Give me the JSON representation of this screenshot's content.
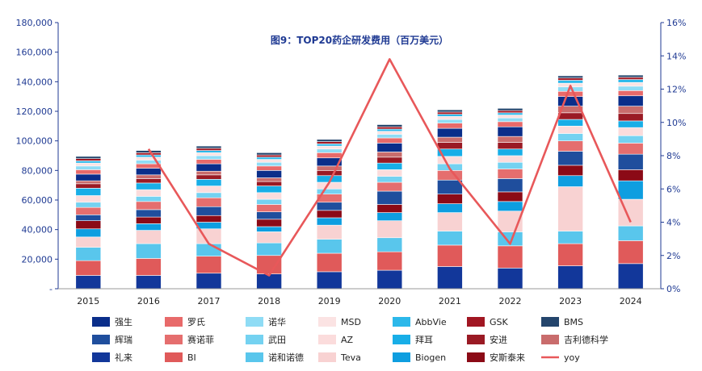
{
  "chart_data": {
    "type": "bar",
    "stacked": true,
    "title": "图9：TOP20药企研发费用（百万美元）",
    "categories": [
      "2015",
      "2016",
      "2017",
      "2018",
      "2019",
      "2020",
      "2021",
      "2022",
      "2023",
      "2024"
    ],
    "y_left": {
      "ylim": [
        0,
        180000
      ],
      "ticks": [
        0,
        20000,
        40000,
        60000,
        80000,
        100000,
        120000,
        140000,
        160000,
        180000
      ],
      "tick_labels": [
        "-",
        "20,000",
        "40,000",
        "60,000",
        "80,000",
        "100,000",
        "120,000",
        "140,000",
        "160,000",
        "180,000"
      ]
    },
    "y_right": {
      "ylim": [
        0,
        16
      ],
      "ticks": [
        0,
        2,
        4,
        6,
        8,
        10,
        12,
        14,
        16
      ],
      "tick_labels": [
        "0%",
        "2%",
        "4%",
        "6%",
        "8%",
        "10%",
        "12%",
        "14%",
        "16%"
      ]
    },
    "series": [
      {
        "name": "礼来",
        "color": "#12379a",
        "values": [
          9000,
          9000,
          10500,
          10000,
          11500,
          12500,
          15000,
          14000,
          15500,
          17000
        ]
      },
      {
        "name": "BI",
        "color": "#e05a5a",
        "values": [
          10000,
          11500,
          11500,
          12500,
          12500,
          12500,
          14500,
          15000,
          15000,
          15500
        ]
      },
      {
        "name": "诺和诺德",
        "color": "#59c6ec",
        "values": [
          9000,
          10000,
          8500,
          8500,
          9500,
          9500,
          9500,
          9500,
          8500,
          10000
        ]
      },
      {
        "name": "Teva",
        "color": "#f8d2d2",
        "values": [
          7000,
          9000,
          10000,
          7500,
          9500,
          11500,
          12500,
          14000,
          30000,
          18000
        ]
      },
      {
        "name": "Biogen",
        "color": "#0e9ee0",
        "values": [
          5500,
          4500,
          4500,
          3500,
          5000,
          5500,
          6000,
          6500,
          7500,
          12500
        ]
      },
      {
        "name": "安斯泰来",
        "color": "#8b0a16",
        "values": [
          5500,
          4500,
          4500,
          5000,
          5000,
          5500,
          6500,
          6500,
          7000,
          7500
        ]
      },
      {
        "name": "辉瑞",
        "color": "#1f4e9d",
        "values": [
          4000,
          5000,
          6000,
          5000,
          5500,
          9000,
          9500,
          9000,
          9500,
          10500
        ]
      },
      {
        "name": "赛诺菲",
        "color": "#e56e6e",
        "values": [
          5000,
          5500,
          6000,
          5000,
          5500,
          6000,
          6500,
          6500,
          7000,
          7500
        ]
      },
      {
        "name": "武田",
        "color": "#74d2f1",
        "values": [
          3500,
          3500,
          3500,
          3500,
          3500,
          4000,
          4500,
          4500,
          5000,
          5000
        ]
      },
      {
        "name": "AZ",
        "color": "#fbdcdc",
        "values": [
          4500,
          4500,
          4500,
          4500,
          4500,
          4500,
          5000,
          4500,
          5000,
          5500
        ]
      },
      {
        "name": "拜耳",
        "color": "#18aee7",
        "values": [
          5000,
          4500,
          4500,
          4500,
          4500,
          4500,
          5000,
          4500,
          4500,
          4500
        ]
      },
      {
        "name": "安进",
        "color": "#9a1a24",
        "values": [
          3000,
          3000,
          3000,
          3000,
          3500,
          4000,
          4500,
          4500,
          4500,
          5000
        ]
      },
      {
        "name": "吉利德科学",
        "color": "#c96c6c",
        "values": [
          2000,
          2500,
          2500,
          2500,
          3000,
          3500,
          3500,
          4000,
          4500,
          5000
        ]
      },
      {
        "name": "强生",
        "color": "#0a2e8a",
        "values": [
          4500,
          4500,
          5000,
          5000,
          5500,
          6000,
          6000,
          6500,
          6500,
          7000
        ]
      },
      {
        "name": "罗氏",
        "color": "#e86a6a",
        "values": [
          3000,
          3000,
          3000,
          3000,
          3500,
          3500,
          3500,
          3500,
          3500,
          3500
        ]
      },
      {
        "name": "诺华",
        "color": "#8fdcf5",
        "values": [
          2500,
          2500,
          2500,
          2500,
          2500,
          2500,
          2500,
          2500,
          3000,
          3000
        ]
      },
      {
        "name": "MSD",
        "color": "#fbe3e3",
        "values": [
          2000,
          2000,
          2000,
          2000,
          2000,
          2000,
          2000,
          2000,
          2500,
          2500
        ]
      },
      {
        "name": "AbbVie",
        "color": "#2cb8ea",
        "values": [
          1500,
          1500,
          1500,
          1500,
          1500,
          1500,
          1500,
          1500,
          2000,
          2000
        ]
      },
      {
        "name": "GSK",
        "color": "#a11622",
        "values": [
          1500,
          1500,
          1500,
          1500,
          1500,
          1500,
          1500,
          1500,
          1500,
          1500
        ]
      },
      {
        "name": "BMS",
        "color": "#24456c",
        "values": [
          1500,
          1500,
          1500,
          1500,
          1500,
          1500,
          1500,
          1500,
          1500,
          1500
        ]
      }
    ],
    "line": {
      "name": "yoy",
      "color": "#e8585a",
      "axis": "right",
      "values": [
        null,
        8.4,
        2.7,
        0.8,
        6.4,
        13.8,
        7.2,
        2.7,
        12.2,
        4.0
      ]
    },
    "legend": {
      "position": "bottom",
      "rows": [
        [
          "强生",
          "罗氏",
          "诺华",
          "MSD",
          "AbbVie",
          "GSK",
          "BMS"
        ],
        [
          "辉瑞",
          "赛诺菲",
          "武田",
          "AZ",
          "拜耳",
          "安进",
          "吉利德科学"
        ],
        [
          "礼来",
          "BI",
          "诺和诺德",
          "Teva",
          "Biogen",
          "安斯泰来",
          "yoy"
        ]
      ]
    }
  }
}
